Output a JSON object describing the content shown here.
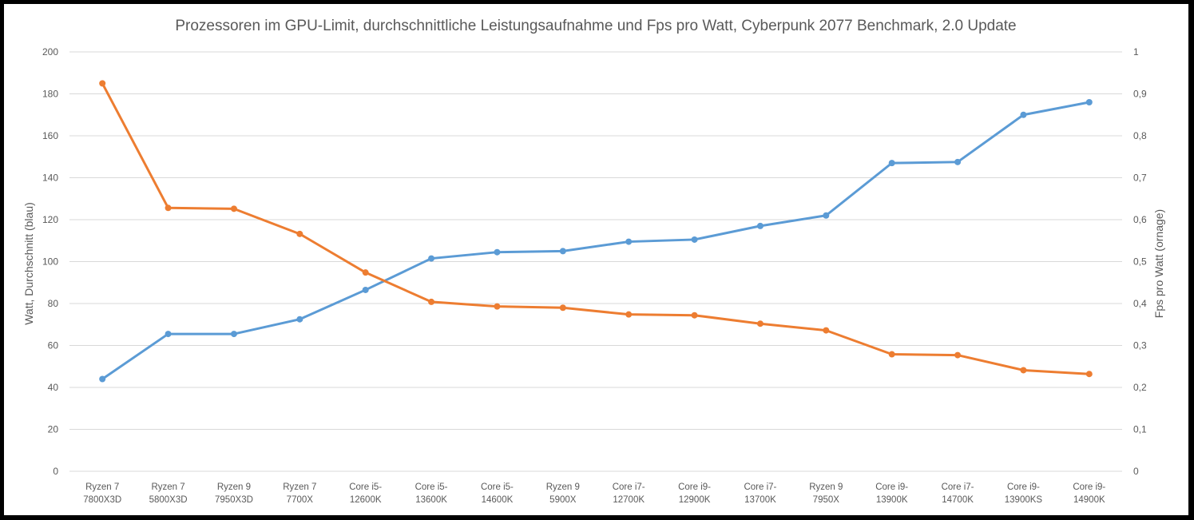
{
  "chart_data": {
    "type": "line",
    "title": "Prozessoren im GPU-Limit, durchschnittliche Leistungsaufnahme und Fps pro Watt, Cyberpunk 2077 Benchmark, 2.0 Update",
    "ylabel_left": "Watt, Durchschnitt (blau)",
    "ylabel_right": "Fps pro Watt (ornage)",
    "y_left_lim": [
      0,
      200
    ],
    "y_left_ticks": [
      "0",
      "20",
      "40",
      "60",
      "80",
      "100",
      "120",
      "140",
      "160",
      "180",
      "200"
    ],
    "y_right_lim": [
      0,
      1
    ],
    "y_right_ticks": [
      "0",
      "0,1",
      "0,2",
      "0,3",
      "0,4",
      "0,5",
      "0,6",
      "0,7",
      "0,8",
      "0,9",
      "1"
    ],
    "grid": true,
    "categories": [
      [
        "Ryzen 7",
        "7800X3D"
      ],
      [
        "Ryzen 7",
        "5800X3D"
      ],
      [
        "Ryzen 9",
        "7950X3D"
      ],
      [
        "Ryzen 7",
        "7700X"
      ],
      [
        "Core i5-",
        "12600K"
      ],
      [
        "Core i5-",
        "13600K"
      ],
      [
        "Core i5-",
        "14600K"
      ],
      [
        "Ryzen 9",
        "5900X"
      ],
      [
        "Core i7-",
        "12700K"
      ],
      [
        "Core i9-",
        "12900K"
      ],
      [
        "Core i7-",
        "13700K"
      ],
      [
        "Ryzen 9",
        "7950X"
      ],
      [
        "Core i9-",
        "13900K"
      ],
      [
        "Core i7-",
        "14700K"
      ],
      [
        "Core i9-",
        "13900KS"
      ],
      [
        "Core i9-",
        "14900K"
      ]
    ],
    "series": [
      {
        "name": "Watt, Durchschnitt",
        "axis": "left",
        "color": "#5b9bd5",
        "values": [
          44,
          65.5,
          65.5,
          72.5,
          86.5,
          101.5,
          104.5,
          105,
          109.5,
          110.5,
          117,
          122,
          147,
          147.5,
          170,
          176
        ]
      },
      {
        "name": "Fps pro Watt",
        "axis": "right",
        "color": "#ed7d31",
        "values": [
          0.925,
          0.628,
          0.626,
          0.566,
          0.474,
          0.404,
          0.393,
          0.39,
          0.374,
          0.372,
          0.352,
          0.336,
          0.279,
          0.277,
          0.241,
          0.232
        ]
      }
    ]
  }
}
